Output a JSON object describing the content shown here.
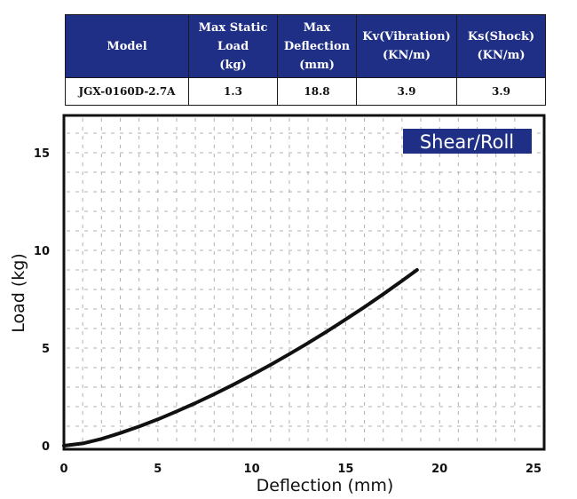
{
  "spec_table": {
    "headers": [
      "Model",
      "Max Static Load (kg)",
      "Max Deflection (mm)",
      "Kv(Vibration) (KN/m)",
      "Ks(Shock) (KN/m)"
    ],
    "header_lines": [
      [
        "Model"
      ],
      [
        "Max Static",
        "Load",
        "(kg)"
      ],
      [
        "Max",
        "Deflection",
        "(mm)"
      ],
      [
        "Kv(Vibration)",
        "(KN/m)"
      ],
      [
        "Ks(Shock)",
        "(KN/m)"
      ]
    ],
    "rows": [
      [
        "JGX-0160D-2.7A",
        "1.3",
        "18.8",
        "3.9",
        "3.9"
      ]
    ]
  },
  "colors": {
    "header_bg": "#1f2f86",
    "badge_bg": "#1f2f86",
    "curve": "#111111",
    "grid": "#b0b0b0"
  },
  "chart_data": {
    "type": "line",
    "title": "Shear/Roll",
    "xlabel": "Deflection (mm)",
    "ylabel": "Load (kg)",
    "xlim": [
      0,
      25
    ],
    "ylim": [
      0,
      15
    ],
    "xticks": [
      0,
      5,
      10,
      15,
      20,
      25
    ],
    "yticks": [
      0,
      5,
      10,
      15
    ],
    "grid": true,
    "series": [
      {
        "x": [
          0,
          1,
          2,
          3,
          4,
          5,
          6,
          7,
          8,
          9,
          10,
          11,
          12,
          13,
          14,
          15,
          16,
          17,
          18,
          18.8
        ],
        "y": [
          0,
          0.12,
          0.35,
          0.65,
          0.98,
          1.35,
          1.76,
          2.18,
          2.64,
          3.12,
          3.62,
          4.14,
          4.69,
          5.26,
          5.85,
          6.47,
          7.1,
          7.76,
          8.44,
          9.0
        ]
      }
    ]
  }
}
